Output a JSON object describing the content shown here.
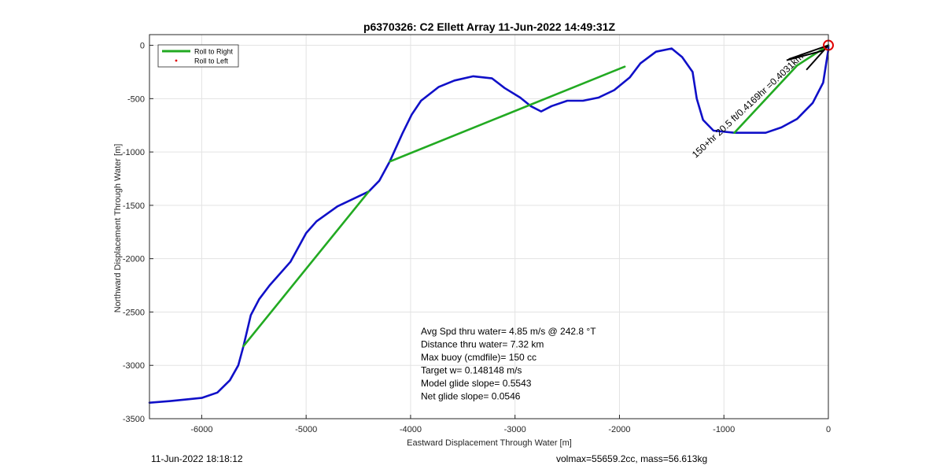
{
  "chart_data": {
    "type": "line",
    "title": "p6370326: C2 Ellett Array 11-Jun-2022 14:49:31Z",
    "xlabel": "Eastward Displacement Through Water [m]",
    "ylabel": "Northward Displacement Through Water [m]",
    "xlim": [
      -6500,
      0
    ],
    "ylim": [
      -3500,
      100
    ],
    "xticks": [
      -6000,
      -5000,
      -4000,
      -3000,
      -2000,
      -1000,
      0
    ],
    "yticks": [
      0,
      -500,
      -1000,
      -1500,
      -2000,
      -2500,
      -3000,
      -3500
    ],
    "grid": true,
    "legend": {
      "location": "top-left",
      "entries": [
        "Roll to Right",
        "Roll to Left"
      ]
    },
    "series": [
      {
        "name": "",
        "color": "#1010c8",
        "points": [
          [
            -6500,
            -3350
          ],
          [
            -6300,
            -3335
          ],
          [
            -6000,
            -3305
          ],
          [
            -5850,
            -3255
          ],
          [
            -5730,
            -3140
          ],
          [
            -5650,
            -3000
          ],
          [
            -5600,
            -2820
          ],
          [
            -5530,
            -2530
          ],
          [
            -5450,
            -2380
          ],
          [
            -5350,
            -2250
          ],
          [
            -5150,
            -2030
          ],
          [
            -5000,
            -1760
          ],
          [
            -4900,
            -1650
          ],
          [
            -4700,
            -1510
          ],
          [
            -4400,
            -1370
          ],
          [
            -4300,
            -1270
          ],
          [
            -4200,
            -1090
          ],
          [
            -4080,
            -830
          ],
          [
            -3990,
            -650
          ],
          [
            -3900,
            -520
          ],
          [
            -3730,
            -390
          ],
          [
            -3580,
            -330
          ],
          [
            -3400,
            -290
          ],
          [
            -3220,
            -310
          ],
          [
            -3100,
            -400
          ],
          [
            -2950,
            -490
          ],
          [
            -2850,
            -570
          ],
          [
            -2750,
            -620
          ],
          [
            -2650,
            -570
          ],
          [
            -2500,
            -520
          ],
          [
            -2350,
            -520
          ],
          [
            -2200,
            -490
          ],
          [
            -2050,
            -420
          ],
          [
            -1900,
            -300
          ],
          [
            -1800,
            -170
          ],
          [
            -1650,
            -60
          ],
          [
            -1500,
            -30
          ],
          [
            -1400,
            -110
          ],
          [
            -1300,
            -250
          ],
          [
            -1260,
            -500
          ],
          [
            -1200,
            -700
          ],
          [
            -1100,
            -800
          ],
          [
            -900,
            -820
          ],
          [
            -600,
            -820
          ],
          [
            -450,
            -770
          ],
          [
            -300,
            -690
          ],
          [
            -150,
            -540
          ],
          [
            -50,
            -350
          ],
          [
            0,
            -40
          ],
          [
            0,
            0
          ]
        ]
      },
      {
        "name": "Roll to Right",
        "color": "#22aa22",
        "segments": [
          [
            [
              -5600,
              -2820
            ],
            [
              -4400,
              -1370
            ]
          ],
          [
            [
              -4200,
              -1090
            ],
            [
              -1950,
              -200
            ]
          ],
          [
            [
              -900,
              -820
            ],
            [
              -300,
              -190
            ]
          ],
          [
            [
              -300,
              -190
            ],
            [
              0,
              0
            ]
          ]
        ]
      }
    ],
    "target_marker": {
      "x": 0,
      "y": 0,
      "color": "#e00000"
    },
    "heading_lines": [
      {
        "from": [
          -380,
          -130
        ],
        "to": [
          0,
          0
        ]
      },
      {
        "from": [
          -210,
          -230
        ],
        "to": [
          0,
          0
        ]
      },
      {
        "from": [
          -400,
          -140
        ],
        "to": [
          -50,
          -50
        ]
      }
    ],
    "annotation": {
      "text": "150+hr 20.5 ft/0.4169hr =0.4031km",
      "anchor": [
        -1270,
        -1060
      ]
    },
    "stats_lines": [
      "Avg Spd thru water=  4.85 m/s @ 242.8 °T",
      "Distance thru water=  7.32 km",
      "Max buoy (cmdfile)= 150 cc",
      "Target w= 0.148148 m/s",
      "Model glide slope= 0.5543",
      "Net glide slope= 0.0546"
    ]
  },
  "footer": {
    "timestamp": "11-Jun-2022 18:18:12",
    "volmax_mass": "volmax=55659.2cc, mass=56.613kg"
  }
}
